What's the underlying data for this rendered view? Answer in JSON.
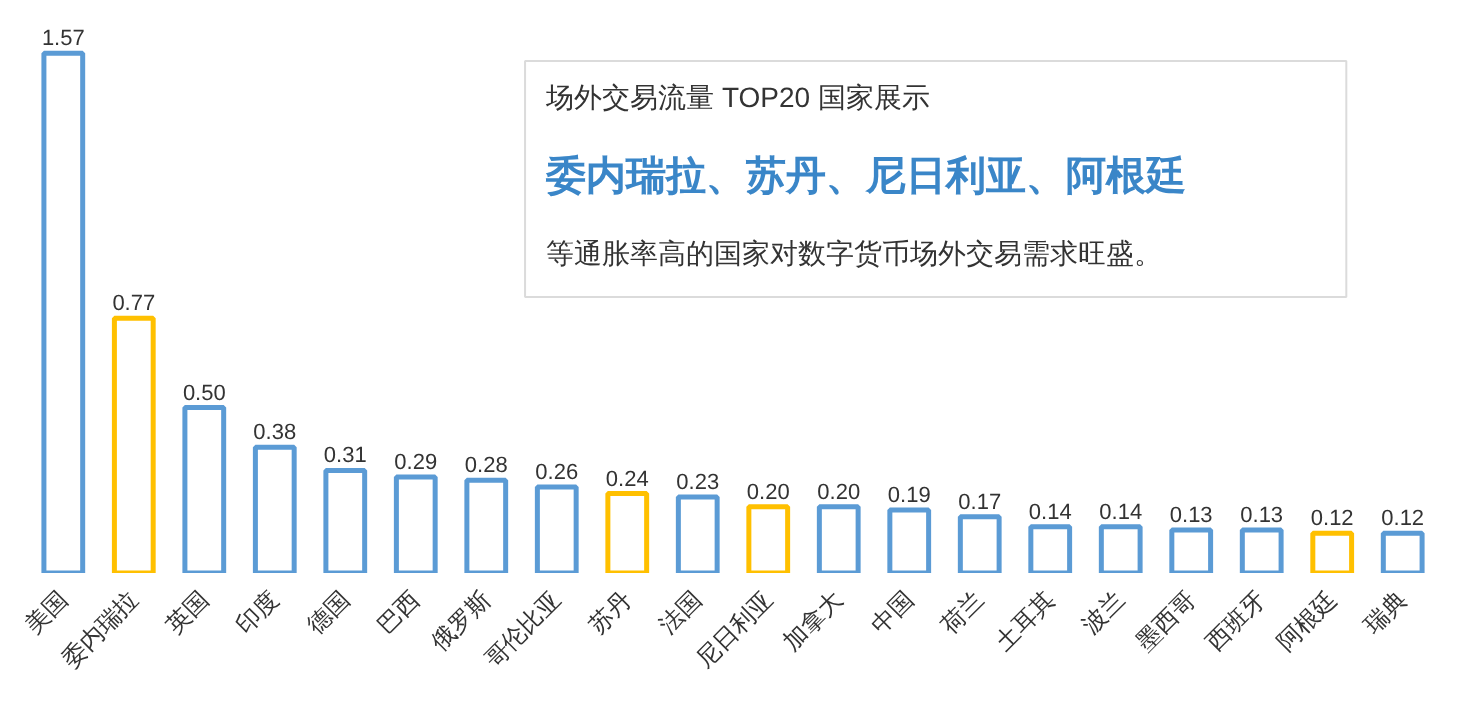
{
  "chart_data": {
    "type": "bar",
    "title": "场外交易流量 TOP20 国家展示",
    "subtitle": "委内瑞拉、苏丹、尼日利亚、阿根廷",
    "annotations": [
      "等通胀率高的国家对数字货币场外交易需求旺盛。"
    ],
    "categories": [
      "美国",
      "委内瑞拉",
      "英国",
      "印度",
      "德国",
      "巴西",
      "俄罗斯",
      "哥伦比亚",
      "苏丹",
      "法国",
      "尼日利亚",
      "加拿大",
      "中国",
      "荷兰",
      "土耳其",
      "波兰",
      "墨西哥",
      "西班牙",
      "阿根廷",
      "瑞典"
    ],
    "values": [
      1.57,
      0.77,
      0.5,
      0.38,
      0.31,
      0.29,
      0.28,
      0.26,
      0.24,
      0.23,
      0.2,
      0.2,
      0.19,
      0.17,
      0.14,
      0.14,
      0.13,
      0.13,
      0.12,
      0.12
    ],
    "value_labels": [
      "1.57",
      "0.77",
      "0.50",
      "0.38",
      "0.31",
      "0.29",
      "0.28",
      "0.26",
      "0.24",
      "0.23",
      "0.20",
      "0.20",
      "0.19",
      "0.17",
      "0.14",
      "0.14",
      "0.13",
      "0.13",
      "0.12",
      "0.12"
    ],
    "colors": [
      "#5b9bd5",
      "#ffc000",
      "#5b9bd5",
      "#5b9bd5",
      "#5b9bd5",
      "#5b9bd5",
      "#5b9bd5",
      "#5b9bd5",
      "#ffc000",
      "#5b9bd5",
      "#ffc000",
      "#5b9bd5",
      "#5b9bd5",
      "#5b9bd5",
      "#5b9bd5",
      "#5b9bd5",
      "#5b9bd5",
      "#5b9bd5",
      "#ffc000",
      "#5b9bd5"
    ],
    "grid": false
  }
}
